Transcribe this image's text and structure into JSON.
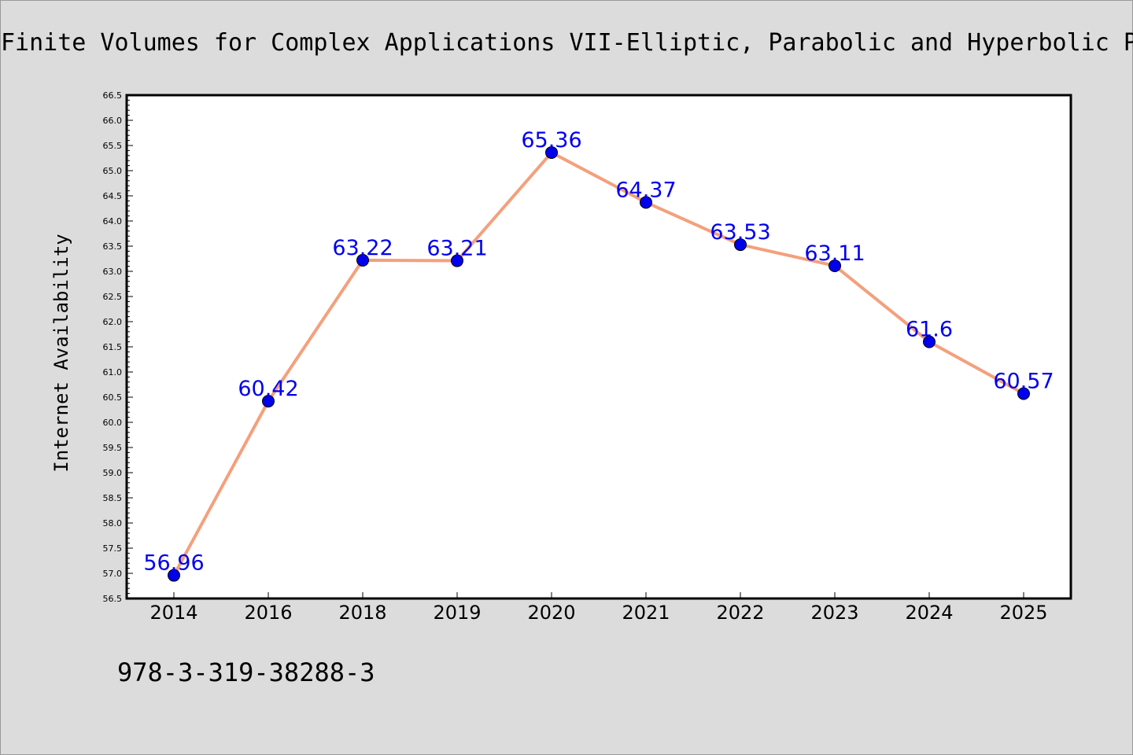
{
  "chart_data": {
    "type": "line",
    "title": "Finite Volumes for Complex Applications VII-Elliptic, Parabolic and Hyperbolic Problems",
    "xlabel": "",
    "ylabel": "Internet Availability",
    "categories": [
      "2014",
      "2016",
      "2018",
      "2019",
      "2020",
      "2021",
      "2022",
      "2023",
      "2024",
      "2025"
    ],
    "series": [
      {
        "values": [
          56.96,
          60.42,
          63.22,
          63.21,
          65.36,
          64.37,
          63.53,
          63.11,
          61.6,
          60.57
        ],
        "data_labels": [
          "56.96",
          "60.42",
          "63.22",
          "63.21",
          "65.36",
          "64.37",
          "63.53",
          "63.11",
          "61.6",
          "60.57"
        ],
        "line_color": "#f4a07c",
        "marker_color": "#0000ee",
        "label_color": "#0000ee"
      }
    ],
    "ylim": [
      56.5,
      66.5
    ],
    "yticks": [
      "56.5",
      "57.0",
      "57.5",
      "58.0",
      "58.5",
      "59.0",
      "59.5",
      "60.0",
      "60.5",
      "61.0",
      "61.5",
      "62.0",
      "62.5",
      "63.0",
      "63.5",
      "64.0",
      "64.5",
      "65.0",
      "65.5",
      "66.0",
      "66.5"
    ],
    "grid": false,
    "legend": "none",
    "footnote": "978-3-319-38288-3",
    "colors": {
      "background": "#dcdcdc",
      "plot_background": "#ffffff",
      "axes": "#000000"
    }
  }
}
